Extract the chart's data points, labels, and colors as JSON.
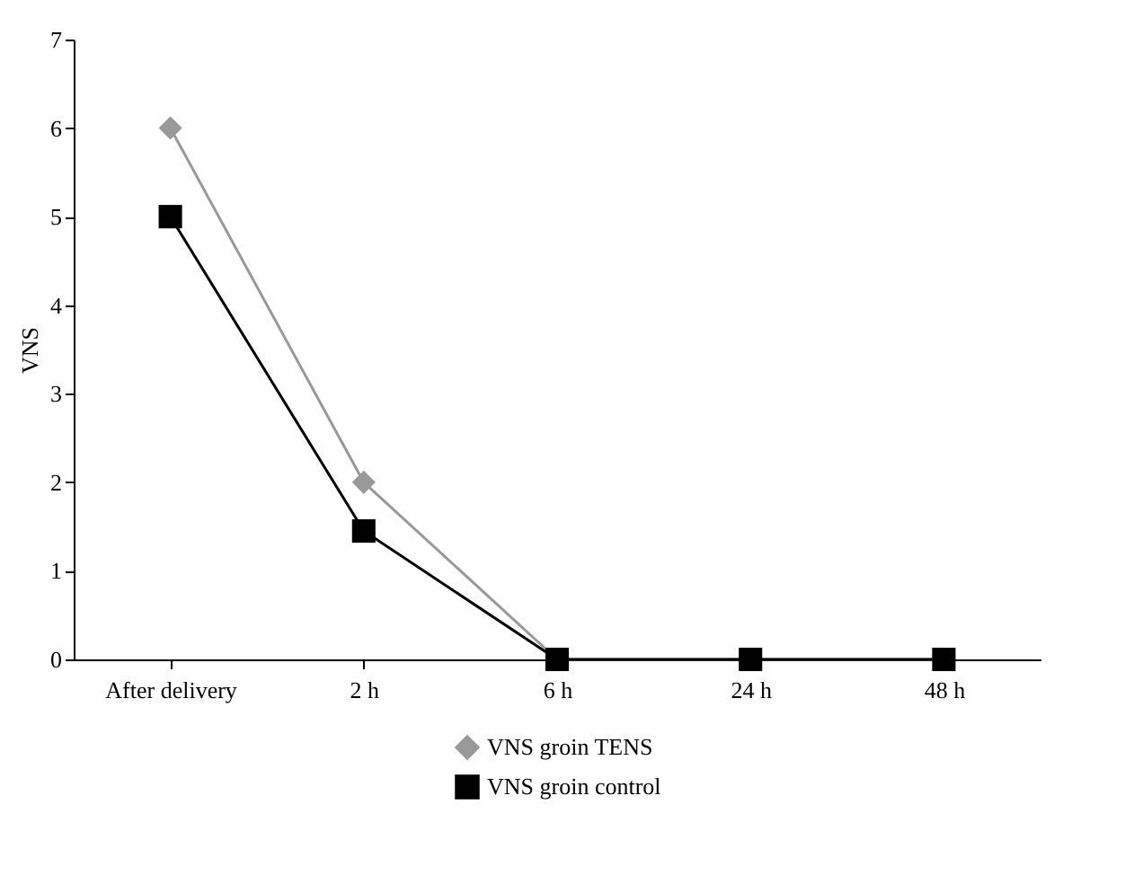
{
  "chart_data": {
    "type": "line",
    "ylabel": "VNS",
    "categories": [
      "After delivery",
      "2 h",
      "6 h",
      "24 h",
      "48 h"
    ],
    "series": [
      {
        "name": "VNS groin TENS",
        "color": "#999999",
        "marker": "diamond",
        "values": [
          6,
          2,
          0,
          0,
          0
        ]
      },
      {
        "name": "VNS groin control",
        "color": "#000000",
        "marker": "square",
        "values": [
          5,
          1.45,
          0,
          0,
          0
        ]
      }
    ],
    "ylim": [
      0,
      7
    ],
    "yticks": [
      0,
      1,
      2,
      3,
      4,
      5,
      6,
      7
    ],
    "grid": false,
    "legend": "bottom",
    "line_style": "solid"
  }
}
